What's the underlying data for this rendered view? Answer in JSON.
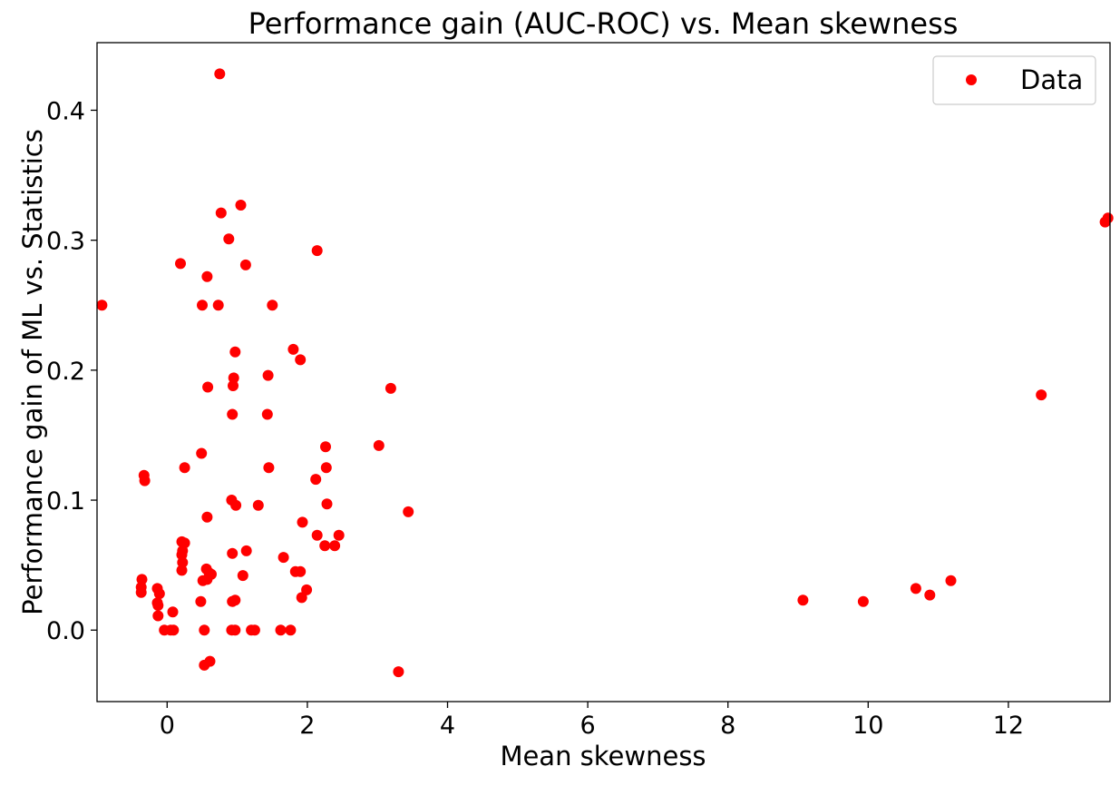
{
  "chart_data": {
    "type": "scatter",
    "title": "Performance gain (AUC-ROC) vs. Mean skewness",
    "xlabel": "Mean skewness",
    "ylabel": "Performance gain of ML vs. Statistics",
    "xlim": [
      -1.0,
      13.45
    ],
    "ylim": [
      -0.055,
      0.452
    ],
    "xticks": [
      0,
      2,
      4,
      6,
      8,
      10,
      12
    ],
    "xtick_labels": [
      "0",
      "2",
      "4",
      "6",
      "8",
      "10",
      "12"
    ],
    "yticks": [
      0.0,
      0.1,
      0.2,
      0.3,
      0.4
    ],
    "ytick_labels": [
      "0.0",
      "0.1",
      "0.2",
      "0.3",
      "0.4"
    ],
    "grid": false,
    "legend": {
      "placement": "top-right",
      "entries": [
        "Data"
      ]
    },
    "marker_color": "#ff0000",
    "series": [
      {
        "name": "Data",
        "points": [
          [
            -0.93,
            0.25
          ],
          [
            0.75,
            0.428
          ],
          [
            0.77,
            0.321
          ],
          [
            1.05,
            0.327
          ],
          [
            0.88,
            0.301
          ],
          [
            2.14,
            0.292
          ],
          [
            0.19,
            0.282
          ],
          [
            1.12,
            0.281
          ],
          [
            0.57,
            0.272
          ],
          [
            0.5,
            0.25
          ],
          [
            0.73,
            0.25
          ],
          [
            1.5,
            0.25
          ],
          [
            0.97,
            0.214
          ],
          [
            1.8,
            0.216
          ],
          [
            1.9,
            0.208
          ],
          [
            0.95,
            0.194
          ],
          [
            1.44,
            0.196
          ],
          [
            0.58,
            0.187
          ],
          [
            0.94,
            0.188
          ],
          [
            3.19,
            0.186
          ],
          [
            0.93,
            0.166
          ],
          [
            1.43,
            0.166
          ],
          [
            12.47,
            0.181
          ],
          [
            2.26,
            0.141
          ],
          [
            3.02,
            0.142
          ],
          [
            0.49,
            0.136
          ],
          [
            0.25,
            0.125
          ],
          [
            1.45,
            0.125
          ],
          [
            2.27,
            0.125
          ],
          [
            -0.33,
            0.119
          ],
          [
            -0.32,
            0.115
          ],
          [
            2.12,
            0.116
          ],
          [
            0.92,
            0.1
          ],
          [
            0.98,
            0.096
          ],
          [
            1.3,
            0.096
          ],
          [
            2.28,
            0.097
          ],
          [
            3.44,
            0.091
          ],
          [
            0.57,
            0.087
          ],
          [
            1.93,
            0.083
          ],
          [
            0.21,
            0.068
          ],
          [
            0.25,
            0.067
          ],
          [
            2.45,
            0.073
          ],
          [
            2.14,
            0.073
          ],
          [
            0.22,
            0.061
          ],
          [
            0.21,
            0.058
          ],
          [
            0.22,
            0.052
          ],
          [
            1.13,
            0.061
          ],
          [
            2.25,
            0.065
          ],
          [
            2.39,
            0.065
          ],
          [
            0.93,
            0.059
          ],
          [
            1.66,
            0.056
          ],
          [
            0.21,
            0.046
          ],
          [
            0.56,
            0.047
          ],
          [
            0.6,
            0.044
          ],
          [
            0.63,
            0.043
          ],
          [
            1.83,
            0.045
          ],
          [
            1.9,
            0.045
          ],
          [
            1.08,
            0.042
          ],
          [
            -0.36,
            0.039
          ],
          [
            0.51,
            0.038
          ],
          [
            0.57,
            0.039
          ],
          [
            -0.37,
            0.033
          ],
          [
            -0.37,
            0.029
          ],
          [
            -0.14,
            0.032
          ],
          [
            -0.11,
            0.028
          ],
          [
            1.99,
            0.031
          ],
          [
            1.92,
            0.025
          ],
          [
            -0.14,
            0.021
          ],
          [
            -0.13,
            0.019
          ],
          [
            0.48,
            0.022
          ],
          [
            0.93,
            0.022
          ],
          [
            0.97,
            0.023
          ],
          [
            0.08,
            0.014
          ],
          [
            -0.13,
            0.011
          ],
          [
            -0.04,
            0.0
          ],
          [
            0.05,
            0.0
          ],
          [
            0.09,
            0.0
          ],
          [
            0.53,
            0.0
          ],
          [
            0.92,
            0.0
          ],
          [
            0.97,
            0.0
          ],
          [
            1.2,
            0.0
          ],
          [
            1.25,
            0.0
          ],
          [
            1.62,
            0.0
          ],
          [
            1.76,
            0.0
          ],
          [
            0.53,
            -0.027
          ],
          [
            0.61,
            -0.024
          ],
          [
            3.3,
            -0.032
          ],
          [
            9.07,
            0.023
          ],
          [
            9.93,
            0.022
          ],
          [
            10.68,
            0.032
          ],
          [
            10.88,
            0.027
          ],
          [
            11.18,
            0.038
          ],
          [
            13.38,
            0.314
          ],
          [
            13.42,
            0.317
          ]
        ]
      }
    ]
  }
}
